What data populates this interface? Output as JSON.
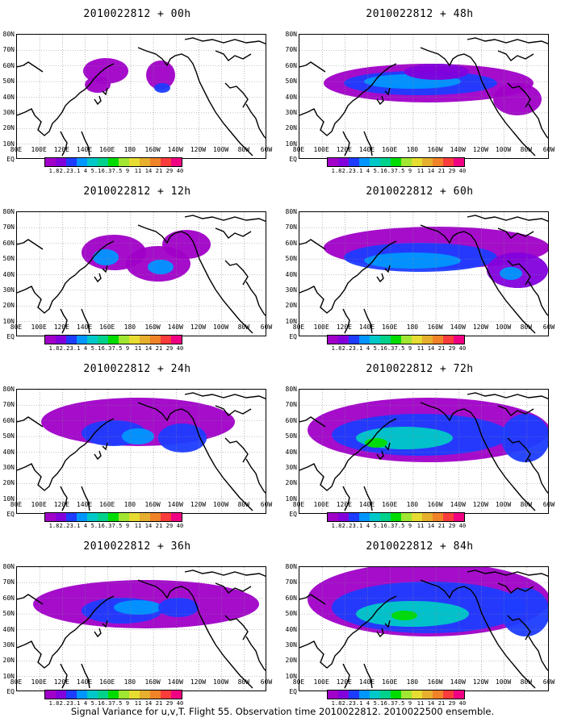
{
  "panels": [
    {
      "title": "2010022812 + 00h",
      "col": 0,
      "row": 0
    },
    {
      "title": "2010022812 + 48h",
      "col": 1,
      "row": 0
    },
    {
      "title": "2010022812 + 12h",
      "col": 0,
      "row": 1
    },
    {
      "title": "2010022812 + 60h",
      "col": 1,
      "row": 1
    },
    {
      "title": "2010022812 + 24h",
      "col": 0,
      "row": 2
    },
    {
      "title": "2010022812 + 72h",
      "col": 1,
      "row": 2
    },
    {
      "title": "2010022812 + 36h",
      "col": 0,
      "row": 3
    },
    {
      "title": "2010022812 + 84h",
      "col": 1,
      "row": 3
    }
  ],
  "lat_labels": [
    "80N",
    "70N",
    "60N",
    "50N",
    "40N",
    "30N",
    "20N",
    "10N",
    "EQ"
  ],
  "lon_labels": [
    "80E",
    "100E",
    "120E",
    "140E",
    "160E",
    "180",
    "160W",
    "140W",
    "120W",
    "100W",
    "80W",
    "60W"
  ],
  "colorbar": {
    "levels": [
      "1.8",
      "2.2",
      "3.1",
      "4",
      "5.1",
      "6.3",
      "7.5",
      "9",
      "11",
      "14",
      "21",
      "29",
      "40"
    ],
    "colors": [
      "#a000c8",
      "#8200dc",
      "#1e3cff",
      "#0096ff",
      "#00c8c8",
      "#00d28c",
      "#00dc00",
      "#a0e632",
      "#e6dc32",
      "#e6af2d",
      "#f08228",
      "#fa3c3c",
      "#f00082"
    ]
  },
  "footer": "Signal Variance for u,v,T. Flight 55. Observation time 2010022812. 2010022500 ensemble."
}
